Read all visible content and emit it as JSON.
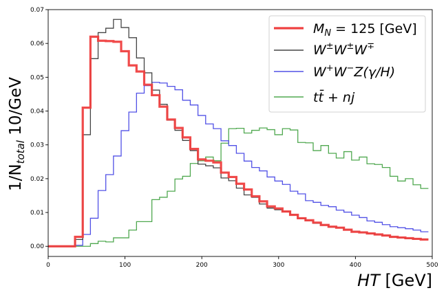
{
  "chart_data": {
    "type": "line",
    "style": "step-histogram",
    "xlabel": "HT [GeV]",
    "ylabel": "1/N_total 10/GeV",
    "xlim": [
      0,
      500
    ],
    "ylim": [
      -0.003,
      0.07
    ],
    "xticks": [
      "0",
      "100",
      "200",
      "300",
      "400",
      "500"
    ],
    "yticks": [
      "0.00",
      "0.01",
      "0.02",
      "0.03",
      "0.04",
      "0.05",
      "0.06",
      "0.07"
    ],
    "grid": false,
    "legend_position": "top-right",
    "bin_edges": [
      0,
      5,
      15,
      25,
      35,
      45,
      55,
      65,
      75,
      85,
      95,
      105,
      115,
      125,
      135,
      145,
      155,
      165,
      175,
      185,
      195,
      205,
      215,
      225,
      235,
      245,
      255,
      265,
      275,
      285,
      295,
      305,
      315,
      325,
      335,
      345,
      355,
      365,
      375,
      385,
      395,
      405,
      415,
      425,
      435,
      445,
      455,
      465,
      475,
      485
    ],
    "series": [
      {
        "name": "M_N = 125 [GeV]",
        "color": "#ef4040",
        "values": [
          0,
          0,
          0,
          0,
          0.0028,
          0.041,
          0.062,
          0.0608,
          0.0607,
          0.0605,
          0.0577,
          0.0535,
          0.0517,
          0.0478,
          0.0447,
          0.0413,
          0.0375,
          0.035,
          0.0322,
          0.0288,
          0.0257,
          0.0253,
          0.0248,
          0.0218,
          0.0205,
          0.0185,
          0.0168,
          0.0148,
          0.0133,
          0.0118,
          0.0112,
          0.0103,
          0.0093,
          0.0083,
          0.0077,
          0.007,
          0.0063,
          0.0058,
          0.0055,
          0.0049,
          0.0043,
          0.0041,
          0.0038,
          0.0035,
          0.0032,
          0.0028,
          0.0026,
          0.0024,
          0.0022,
          0.002
        ]
      },
      {
        "name": "W±W±W∓",
        "color": "#444444",
        "values": [
          0,
          0,
          0,
          0,
          0.002,
          0.033,
          0.0555,
          0.0632,
          0.0645,
          0.0671,
          0.0647,
          0.0617,
          0.0557,
          0.0513,
          0.0462,
          0.042,
          0.0373,
          0.0343,
          0.0313,
          0.0283,
          0.0243,
          0.0238,
          0.0232,
          0.0202,
          0.0194,
          0.0172,
          0.0152,
          0.0145,
          0.0125,
          0.0113,
          0.0108,
          0.0103,
          0.0093,
          0.0083,
          0.0075,
          0.0068,
          0.0063,
          0.0057,
          0.0055,
          0.0049,
          0.0045,
          0.0042,
          0.0039,
          0.0034,
          0.0031,
          0.0027,
          0.0025,
          0.0023,
          0.0022,
          0.0021
        ]
      },
      {
        "name": "W+W−Z(γ/H)",
        "color": "#5050e6",
        "values": [
          0,
          0,
          0,
          0,
          0.0003,
          0.0035,
          0.0083,
          0.0165,
          0.0212,
          0.0267,
          0.0342,
          0.0397,
          0.0453,
          0.0475,
          0.0485,
          0.0483,
          0.0473,
          0.0463,
          0.0432,
          0.0418,
          0.0387,
          0.0362,
          0.0348,
          0.0312,
          0.0298,
          0.0275,
          0.0252,
          0.0233,
          0.0223,
          0.0205,
          0.0193,
          0.0183,
          0.0163,
          0.0155,
          0.0135,
          0.013,
          0.0121,
          0.0117,
          0.0107,
          0.0101,
          0.0092,
          0.0085,
          0.0075,
          0.0071,
          0.0064,
          0.0058,
          0.0055,
          0.0052,
          0.0048,
          0.0043
        ]
      },
      {
        "name": "tt̄ + nj",
        "color": "#4fa84f",
        "values": [
          0,
          0,
          0,
          0,
          0,
          0,
          0.0008,
          0.0015,
          0.0013,
          0.0025,
          0.0025,
          0.0048,
          0.0073,
          0.0073,
          0.0138,
          0.0145,
          0.0163,
          0.0199,
          0.0207,
          0.0245,
          0.0253,
          0.0264,
          0.0253,
          0.0305,
          0.0348,
          0.0349,
          0.0335,
          0.0343,
          0.035,
          0.0345,
          0.033,
          0.0348,
          0.0344,
          0.0307,
          0.0306,
          0.0283,
          0.0298,
          0.0275,
          0.0261,
          0.028,
          0.0255,
          0.0264,
          0.0244,
          0.0242,
          0.0233,
          0.0207,
          0.0193,
          0.02,
          0.0182,
          0.0171
        ]
      }
    ]
  },
  "legend": {
    "entry_1": {
      "prefix": "M",
      "sub": "N",
      "rest": " = 125 [GeV]"
    },
    "entry_2": {
      "b1": "W",
      "s1": "±",
      "b2": "W",
      "s2": "±",
      "b3": "W",
      "s3": "∓"
    },
    "entry_3": {
      "b1": "W",
      "s1": "+",
      "b2": "W",
      "s2": "−",
      "b3": "Z(γ/H)"
    },
    "entry_4": {
      "text": "tt̄ + nj"
    }
  },
  "axes": {
    "ylabel_main": "1/N",
    "ylabel_sub": "total",
    "ylabel_rest": " 10/GeV",
    "xlabel_var": "HT",
    "xlabel_unit": " [GeV]"
  }
}
